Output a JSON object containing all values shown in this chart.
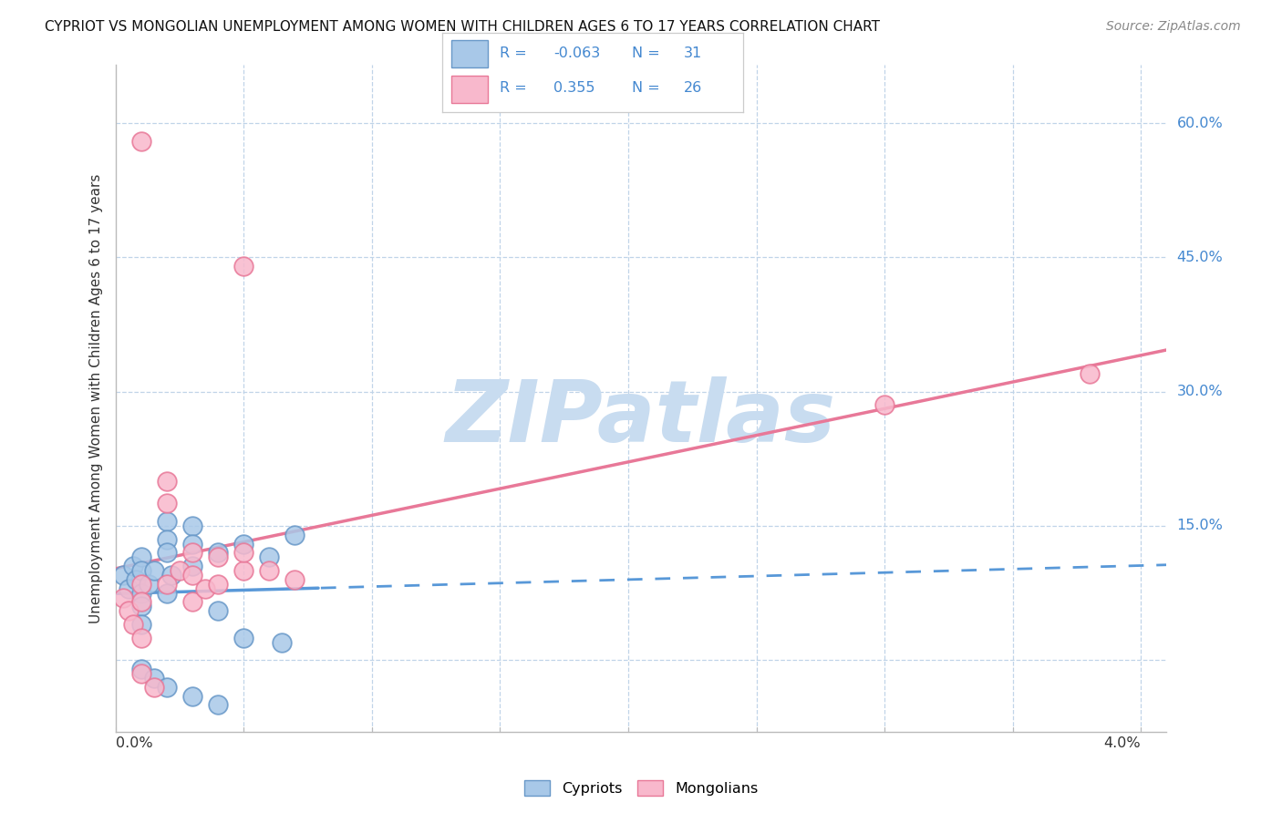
{
  "title": "CYPRIOT VS MONGOLIAN UNEMPLOYMENT AMONG WOMEN WITH CHILDREN AGES 6 TO 17 YEARS CORRELATION CHART",
  "source": "Source: ZipAtlas.com",
  "ylabel": "Unemployment Among Women with Children Ages 6 to 17 years",
  "color_cypriot_fill": "#a8c8e8",
  "color_cypriot_edge": "#6898c8",
  "color_mongolian_fill": "#f8b8cc",
  "color_mongolian_edge": "#e87898",
  "color_cypriot_line": "#5898d8",
  "color_mongolian_line": "#e87898",
  "color_blue_text": "#4488d0",
  "watermark_color": "#c8dcf0",
  "xmin": 0.0,
  "xmax": 0.041,
  "ymin": -0.08,
  "ymax": 0.665,
  "cypriot_x": [
    0.0003,
    0.0005,
    0.0007,
    0.0008,
    0.001,
    0.001,
    0.001,
    0.001,
    0.001,
    0.0013,
    0.0015,
    0.002,
    0.002,
    0.002,
    0.002,
    0.0022,
    0.003,
    0.003,
    0.003,
    0.004,
    0.004,
    0.005,
    0.005,
    0.006,
    0.0065,
    0.007,
    0.001,
    0.0015,
    0.002,
    0.003,
    0.004
  ],
  "cypriot_y": [
    0.095,
    0.08,
    0.105,
    0.09,
    0.115,
    0.1,
    0.075,
    0.06,
    0.04,
    0.085,
    0.1,
    0.155,
    0.135,
    0.12,
    0.075,
    0.095,
    0.15,
    0.13,
    0.105,
    0.12,
    0.055,
    0.13,
    0.025,
    0.115,
    0.02,
    0.14,
    -0.01,
    -0.02,
    -0.03,
    -0.04,
    -0.05
  ],
  "mongolian_x": [
    0.0003,
    0.0005,
    0.0007,
    0.001,
    0.001,
    0.001,
    0.001,
    0.002,
    0.002,
    0.002,
    0.0025,
    0.003,
    0.003,
    0.003,
    0.0035,
    0.004,
    0.004,
    0.005,
    0.005,
    0.005,
    0.006,
    0.007,
    0.001,
    0.0015,
    0.03,
    0.038
  ],
  "mongolian_y": [
    0.07,
    0.055,
    0.04,
    0.085,
    0.065,
    0.025,
    0.58,
    0.2,
    0.175,
    0.085,
    0.1,
    0.12,
    0.095,
    0.065,
    0.08,
    0.115,
    0.085,
    0.1,
    0.44,
    0.12,
    0.1,
    0.09,
    -0.015,
    -0.03,
    0.285,
    0.32
  ]
}
